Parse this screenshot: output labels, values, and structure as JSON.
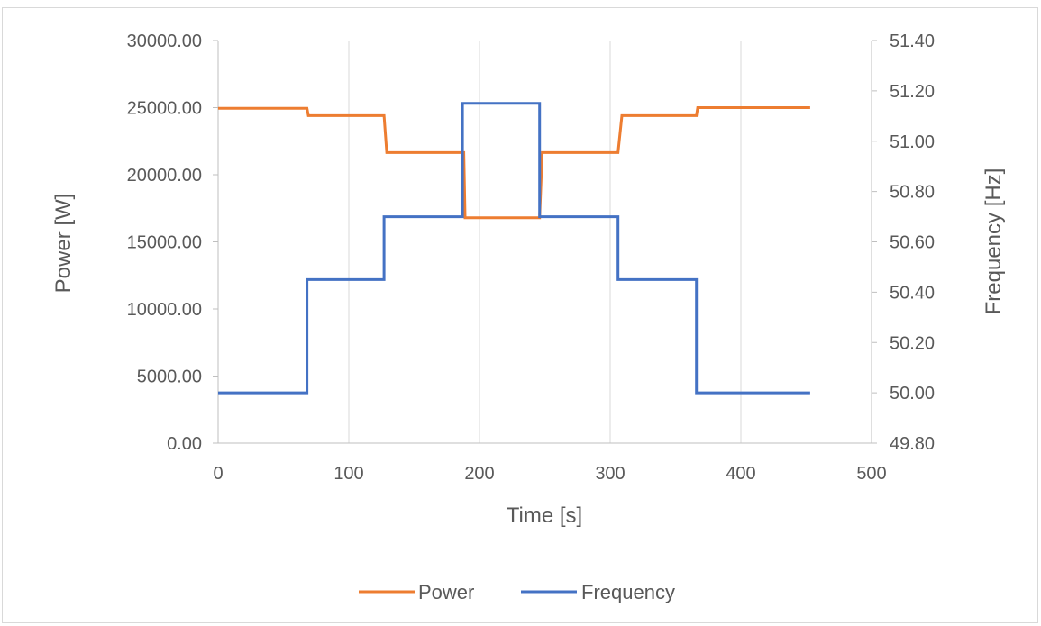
{
  "chart_data": {
    "type": "line",
    "title": "",
    "xlabel": "Time [s]",
    "ylabel_left": "Power [W]",
    "ylabel_right": "Frequency [Hz]",
    "xlim": [
      0,
      500
    ],
    "ylim_left": [
      0,
      30000
    ],
    "ylim_right": [
      49.8,
      51.4
    ],
    "x_ticks": [
      "0",
      "100",
      "200",
      "300",
      "400",
      "500"
    ],
    "y_left_ticks": [
      "0.00",
      "5000.00",
      "10000.00",
      "15000.00",
      "20000.00",
      "25000.00",
      "30000.00"
    ],
    "y_right_ticks": [
      "49.80",
      "50.00",
      "50.20",
      "50.40",
      "50.60",
      "50.80",
      "51.00",
      "51.20",
      "51.40"
    ],
    "grid": "vertical",
    "legend_position": "bottom",
    "series": [
      {
        "name": "Power",
        "axis": "left",
        "color": "#ed7d31",
        "x": [
          0,
          68,
          69,
          127,
          129,
          188,
          189,
          246,
          248,
          306,
          309,
          366,
          367,
          453
        ],
        "values": [
          24950,
          24950,
          24400,
          24400,
          21650,
          21650,
          16800,
          16800,
          21650,
          21650,
          24400,
          24400,
          25000,
          25000
        ]
      },
      {
        "name": "Frequency",
        "axis": "right",
        "color": "#4472c4",
        "x": [
          0,
          68,
          68,
          127,
          127,
          187,
          187,
          246,
          246,
          306,
          306,
          366,
          366,
          453
        ],
        "values": [
          50.0,
          50.0,
          50.45,
          50.45,
          50.7,
          50.7,
          51.15,
          51.15,
          50.7,
          50.7,
          50.45,
          50.45,
          50.0,
          50.0
        ]
      }
    ]
  }
}
